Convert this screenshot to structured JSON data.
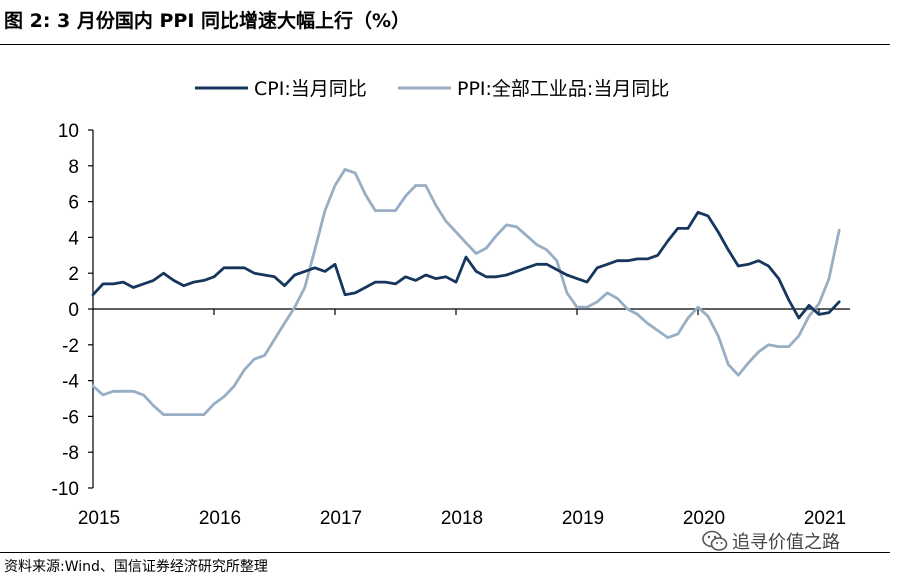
{
  "figure": {
    "title": "图 2:  3 月份国内 PPI 同比增速大幅上行（%）",
    "source": "资料来源:Wind、国信证券经济研究所整理",
    "watermark": "追寻价值之路",
    "watermark_icon": "wechat-icon"
  },
  "chart_data": {
    "type": "line",
    "title": "",
    "xlabel": "",
    "ylabel": "",
    "ylim": [
      -10,
      10
    ],
    "yticks": [
      10,
      8,
      6,
      4,
      2,
      0,
      -2,
      -4,
      -6,
      -8,
      -10
    ],
    "xlim": [
      2015.0,
      2021.2
    ],
    "xticks": [
      "2015",
      "2016",
      "2017",
      "2018",
      "2019",
      "2020",
      "2021"
    ],
    "grid": false,
    "legend_position": "top",
    "colors": {
      "CPI:当月同比": "#17365d",
      "PPI:全部工业品:当月同比": "#98aec4"
    },
    "series": [
      {
        "name": "CPI:当月同比",
        "x": [
          2015.0,
          2015.083,
          2015.167,
          2015.25,
          2015.333,
          2015.417,
          2015.5,
          2015.583,
          2015.667,
          2015.75,
          2015.833,
          2015.917,
          2016.0,
          2016.083,
          2016.167,
          2016.25,
          2016.333,
          2016.417,
          2016.5,
          2016.583,
          2016.667,
          2016.75,
          2016.833,
          2016.917,
          2017.0,
          2017.083,
          2017.167,
          2017.25,
          2017.333,
          2017.417,
          2017.5,
          2017.583,
          2017.667,
          2017.75,
          2017.833,
          2017.917,
          2018.0,
          2018.083,
          2018.167,
          2018.25,
          2018.333,
          2018.417,
          2018.5,
          2018.583,
          2018.667,
          2018.75,
          2018.833,
          2018.917,
          2019.0,
          2019.083,
          2019.167,
          2019.25,
          2019.333,
          2019.417,
          2019.5,
          2019.583,
          2019.667,
          2019.75,
          2019.833,
          2019.917,
          2020.0,
          2020.083,
          2020.167,
          2020.25,
          2020.333,
          2020.417,
          2020.5,
          2020.583,
          2020.667,
          2020.75,
          2020.833,
          2020.917,
          2021.0,
          2021.083,
          2021.167
        ],
        "values": [
          0.8,
          1.4,
          1.4,
          1.5,
          1.2,
          1.4,
          1.6,
          2.0,
          1.6,
          1.3,
          1.5,
          1.6,
          1.8,
          2.3,
          2.3,
          2.3,
          2.0,
          1.9,
          1.8,
          1.3,
          1.9,
          2.1,
          2.3,
          2.1,
          2.5,
          0.8,
          0.9,
          1.2,
          1.5,
          1.5,
          1.4,
          1.8,
          1.6,
          1.9,
          1.7,
          1.8,
          1.5,
          2.9,
          2.1,
          1.8,
          1.8,
          1.9,
          2.1,
          2.3,
          2.5,
          2.5,
          2.2,
          1.9,
          1.7,
          1.5,
          2.3,
          2.5,
          2.7,
          2.7,
          2.8,
          2.8,
          3.0,
          3.8,
          4.5,
          4.5,
          5.4,
          5.2,
          4.3,
          3.3,
          2.4,
          2.5,
          2.7,
          2.4,
          1.7,
          0.5,
          -0.5,
          0.2,
          -0.3,
          -0.2,
          0.4
        ]
      },
      {
        "name": "PPI:全部工业品:当月同比",
        "x": [
          2015.0,
          2015.083,
          2015.167,
          2015.25,
          2015.333,
          2015.417,
          2015.5,
          2015.583,
          2015.667,
          2015.75,
          2015.833,
          2015.917,
          2016.0,
          2016.083,
          2016.167,
          2016.25,
          2016.333,
          2016.417,
          2016.5,
          2016.583,
          2016.667,
          2016.75,
          2016.833,
          2016.917,
          2017.0,
          2017.083,
          2017.167,
          2017.25,
          2017.333,
          2017.417,
          2017.5,
          2017.583,
          2017.667,
          2017.75,
          2017.833,
          2017.917,
          2018.0,
          2018.083,
          2018.167,
          2018.25,
          2018.333,
          2018.417,
          2018.5,
          2018.583,
          2018.667,
          2018.75,
          2018.833,
          2018.917,
          2019.0,
          2019.083,
          2019.167,
          2019.25,
          2019.333,
          2019.417,
          2019.5,
          2019.583,
          2019.667,
          2019.75,
          2019.833,
          2019.917,
          2020.0,
          2020.083,
          2020.167,
          2020.25,
          2020.333,
          2020.417,
          2020.5,
          2020.583,
          2020.667,
          2020.75,
          2020.833,
          2020.917,
          2021.0,
          2021.083,
          2021.167
        ],
        "values": [
          -4.3,
          -4.8,
          -4.6,
          -4.6,
          -4.6,
          -4.8,
          -5.4,
          -5.9,
          -5.9,
          -5.9,
          -5.9,
          -5.9,
          -5.3,
          -4.9,
          -4.3,
          -3.4,
          -2.8,
          -2.6,
          -1.7,
          -0.8,
          0.1,
          1.2,
          3.3,
          5.5,
          6.9,
          7.8,
          7.6,
          6.4,
          5.5,
          5.5,
          5.5,
          6.3,
          6.9,
          6.9,
          5.8,
          4.9,
          4.3,
          3.7,
          3.1,
          3.4,
          4.1,
          4.7,
          4.6,
          4.1,
          3.6,
          3.3,
          2.7,
          0.9,
          0.1,
          0.1,
          0.4,
          0.9,
          0.6,
          0.0,
          -0.3,
          -0.8,
          -1.2,
          -1.6,
          -1.4,
          -0.5,
          0.1,
          -0.4,
          -1.5,
          -3.1,
          -3.7,
          -3.0,
          -2.4,
          -2.0,
          -2.1,
          -2.1,
          -1.5,
          -0.4,
          0.3,
          1.7,
          4.4
        ]
      }
    ]
  }
}
